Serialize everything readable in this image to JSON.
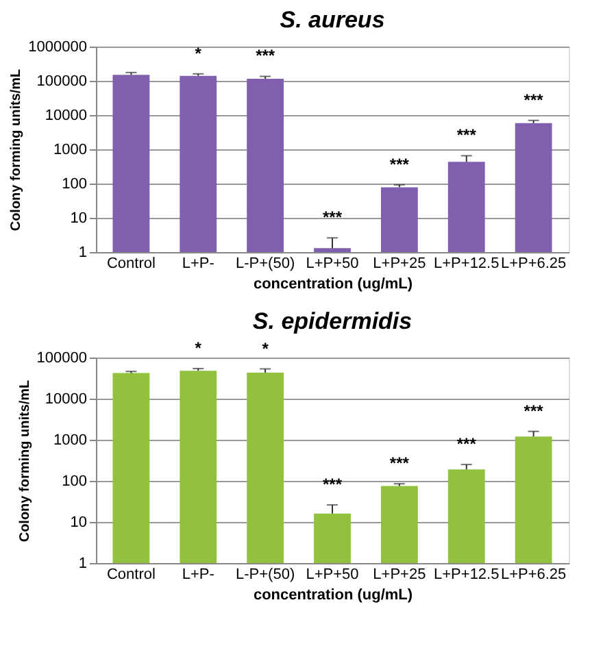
{
  "chart_data": [
    {
      "type": "bar",
      "title": "S. aureus",
      "xlabel": "concentration (ug/mL)",
      "ylabel": "Colony forming units/mL",
      "categories": [
        "Control",
        "L+P-",
        "L-P+(50)",
        "L+P+50",
        "L+P+25",
        "L+P+12.5",
        "L+P+6.25"
      ],
      "values": [
        150000,
        140000,
        115000,
        1.3,
        78,
        430,
        5800
      ],
      "errors": [
        [
          150000,
          175000
        ],
        [
          140000,
          160000
        ],
        [
          115000,
          135000
        ],
        [
          1.3,
          2.6
        ],
        [
          78,
          92
        ],
        [
          430,
          650
        ],
        [
          5800,
          7000
        ]
      ],
      "color": "#7f5fae",
      "log": true,
      "ylim": [
        1,
        1000000
      ],
      "yticks": [
        1,
        10,
        100,
        1000,
        10000,
        100000,
        1000000
      ],
      "grid": "y",
      "annotations": [
        "*",
        "***",
        "***",
        "***",
        "***",
        "***"
      ]
    },
    {
      "type": "bar",
      "title": "S. epidermidis",
      "xlabel": "concentration (ug/mL)",
      "ylabel": "Colony forming units/mL",
      "categories": [
        "Control",
        "L+P-",
        "L-P+(50)",
        "L+P+50",
        "L+P+25",
        "L+P+12.5",
        "L+P+6.25"
      ],
      "values": [
        42000,
        48000,
        43000,
        16,
        75,
        190,
        1200
      ],
      "errors": [
        [
          42000,
          46000
        ],
        [
          48000,
          54000
        ],
        [
          43000,
          53000
        ],
        [
          16,
          26
        ],
        [
          75,
          85
        ],
        [
          190,
          250
        ],
        [
          1200,
          1600
        ]
      ],
      "color": "#92c13e",
      "log": true,
      "ylim": [
        1,
        100000
      ],
      "yticks": [
        1,
        10,
        100,
        1000,
        10000,
        100000
      ],
      "grid": "y",
      "annotations": [
        "*",
        "*",
        "***",
        "***",
        "***",
        "***"
      ]
    }
  ]
}
